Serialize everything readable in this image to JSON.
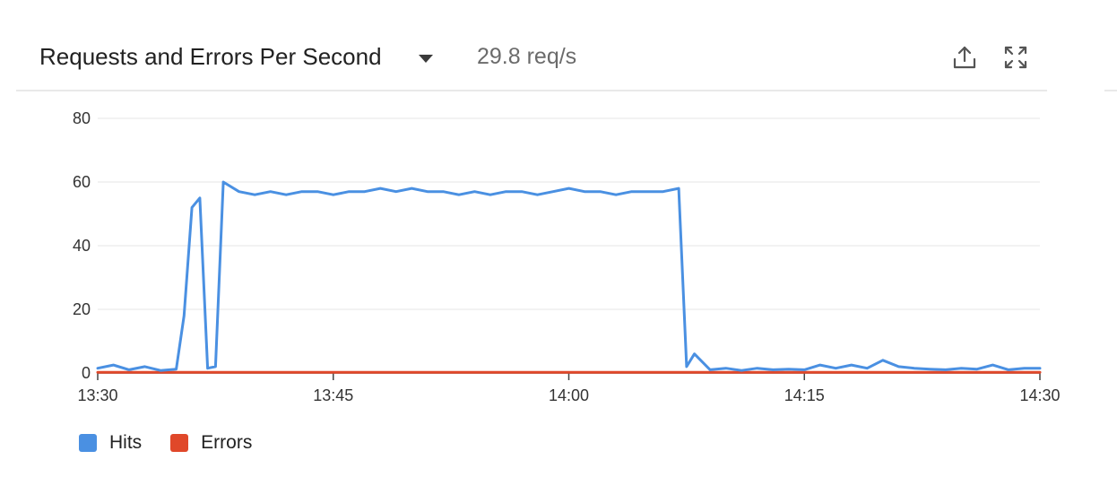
{
  "header": {
    "title": "Requests and Errors Per Second",
    "summary": "29.8 req/s",
    "dropdown_icon": "caret-down-icon",
    "share_icon": "share-upload-icon",
    "expand_icon": "expand-fullscreen-icon"
  },
  "chart_data": {
    "type": "line",
    "title": "Requests and Errors Per Second",
    "xlabel": "",
    "ylabel": "",
    "x_tick_labels": [
      "13:30",
      "13:45",
      "14:00",
      "14:15",
      "14:30"
    ],
    "y_ticks": [
      0,
      20,
      40,
      60,
      80
    ],
    "ylim": [
      0,
      80
    ],
    "xlim": [
      "13:30",
      "14:30"
    ],
    "grid": true,
    "legend_position": "bottom-left",
    "x": [
      "13:30",
      "13:31",
      "13:32",
      "13:33",
      "13:34",
      "13:35",
      "13:35:30",
      "13:36",
      "13:36:30",
      "13:37",
      "13:37:30",
      "13:38",
      "13:39",
      "13:40",
      "13:41",
      "13:42",
      "13:43",
      "13:44",
      "13:45",
      "13:46",
      "13:47",
      "13:48",
      "13:49",
      "13:50",
      "13:51",
      "13:52",
      "13:53",
      "13:54",
      "13:55",
      "13:56",
      "13:57",
      "13:58",
      "13:59",
      "14:00",
      "14:01",
      "14:02",
      "14:03",
      "14:04",
      "14:05",
      "14:06",
      "14:07",
      "14:07:30",
      "14:08",
      "14:09",
      "14:10",
      "14:11",
      "14:12",
      "14:13",
      "14:14",
      "14:15",
      "14:16",
      "14:17",
      "14:18",
      "14:19",
      "14:20",
      "14:21",
      "14:22",
      "14:23",
      "14:24",
      "14:25",
      "14:26",
      "14:27",
      "14:28",
      "14:29",
      "14:30"
    ],
    "series": [
      {
        "name": "Hits",
        "color": "#4a90e2",
        "values": [
          1.5,
          2.5,
          1.0,
          2.0,
          0.8,
          1.2,
          18,
          52,
          55,
          1.5,
          2.0,
          60,
          57,
          56,
          57,
          56,
          57,
          57,
          56,
          57,
          57,
          58,
          57,
          58,
          57,
          57,
          56,
          57,
          56,
          57,
          57,
          56,
          57,
          58,
          57,
          57,
          56,
          57,
          57,
          57,
          58,
          2.0,
          6.0,
          1.0,
          1.5,
          0.8,
          1.5,
          1.0,
          1.2,
          1.0,
          2.5,
          1.5,
          2.5,
          1.5,
          4.0,
          2.0,
          1.5,
          1.2,
          1.0,
          1.5,
          1.2,
          2.5,
          1.0,
          1.5,
          1.5
        ]
      },
      {
        "name": "Errors",
        "color": "#e0482a",
        "values": [
          0.2,
          0.2,
          0.2,
          0.2,
          0.2,
          0.2,
          0.2,
          0.2,
          0.2,
          0.2,
          0.2,
          0.2,
          0.2,
          0.2,
          0.2,
          0.2,
          0.2,
          0.2,
          0.2,
          0.2,
          0.2,
          0.2,
          0.2,
          0.2,
          0.2,
          0.2,
          0.2,
          0.2,
          0.2,
          0.2,
          0.2,
          0.2,
          0.2,
          0.2,
          0.2,
          0.2,
          0.2,
          0.2,
          0.2,
          0.2,
          0.2,
          0.2,
          0.2,
          0.2,
          0.2,
          0.2,
          0.2,
          0.2,
          0.2,
          0.2,
          0.2,
          0.2,
          0.2,
          0.2,
          0.2,
          0.2,
          0.2,
          0.2,
          0.2,
          0.2,
          0.2,
          0.2,
          0.2,
          0.2,
          0.2
        ]
      }
    ]
  },
  "legend": {
    "items": [
      {
        "label": "Hits",
        "color": "#4a90e2"
      },
      {
        "label": "Errors",
        "color": "#e0482a"
      }
    ]
  }
}
